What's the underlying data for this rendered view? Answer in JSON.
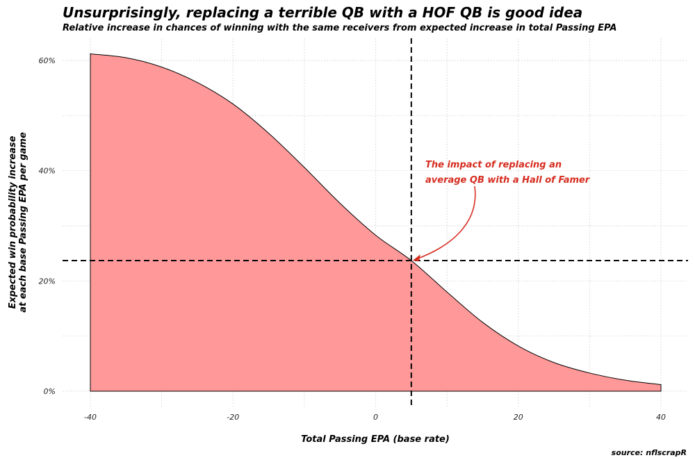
{
  "title": "Unsurprisingly, replacing a terrible QB with a HOF QB is good idea",
  "subtitle": "Relative increase in chances of winning with the same receivers from expected increase in total Passing EPA",
  "caption": "source: nflscrapR",
  "colors": {
    "fill": "#ff9999",
    "outline": "#000000",
    "annotation": "#d62d20",
    "grid": "#d0d0d0"
  },
  "chart_data": {
    "type": "area",
    "title": "Unsurprisingly, replacing a terrible QB with a HOF QB is good idea",
    "subtitle": "Relative increase in chances of winning with the same receivers from expected increase in total Passing EPA",
    "xlabel": "Total Passing EPA (base rate)",
    "ylabel": [
      "Expected win probability increase",
      "at each base Passing EPA per game"
    ],
    "xlim": [
      -40,
      40
    ],
    "ylim": [
      0,
      0.6
    ],
    "x_ticks": [
      -40,
      -20,
      0,
      20,
      40
    ],
    "x_tick_labels": [
      "-40",
      "-20",
      "0",
      "20",
      "40"
    ],
    "y_ticks": [
      0,
      0.2,
      0.4,
      0.6
    ],
    "y_tick_labels": [
      "0%",
      "20%",
      "40%",
      "60%"
    ],
    "grid": true,
    "x": [
      -40,
      -35,
      -30,
      -25,
      -20,
      -15,
      -10,
      -5,
      0,
      5,
      10,
      15,
      20,
      25,
      30,
      35,
      40
    ],
    "y": [
      0.612,
      0.605,
      0.588,
      0.56,
      0.521,
      0.468,
      0.406,
      0.341,
      0.283,
      0.237,
      0.18,
      0.125,
      0.082,
      0.052,
      0.033,
      0.02,
      0.012
    ],
    "reference_lines": {
      "vertical_x": 5,
      "horizontal_y": 0.237
    },
    "annotation": {
      "lines": [
        "The impact of replacing an",
        "average QB with a Hall of Famer"
      ],
      "points_to": {
        "x": 5,
        "y": 0.237
      }
    }
  }
}
